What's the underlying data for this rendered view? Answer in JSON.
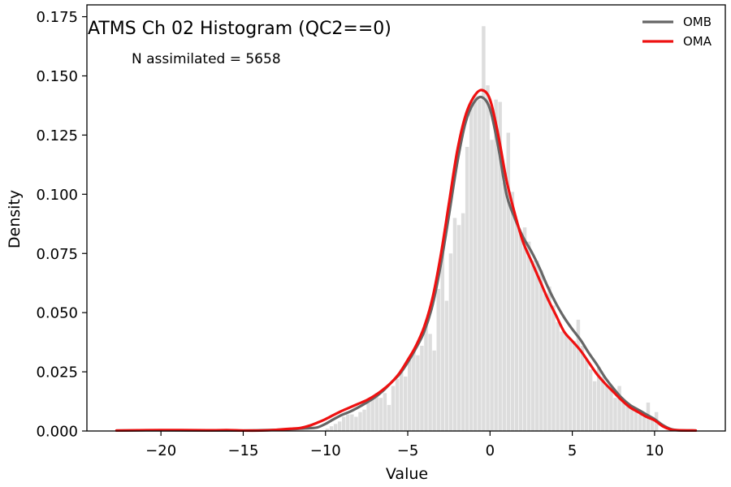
{
  "chart_data": {
    "type": "histogram",
    "title": "ATMS Ch 02 Histogram (QC2==0)",
    "annotation": "N assimilated = 5658",
    "xlabel": "Value",
    "ylabel": "Density",
    "xlim": [
      -24.5,
      14.3
    ],
    "ylim": [
      0,
      0.18
    ],
    "xticks": [
      -20,
      -15,
      -10,
      -5,
      0,
      5,
      10
    ],
    "xtick_labels": [
      "−20",
      "−15",
      "−10",
      "−5",
      "0",
      "5",
      "10"
    ],
    "yticks": [
      0,
      0.025,
      0.05,
      0.075,
      0.1,
      0.125,
      0.15,
      0.175
    ],
    "ytick_labels": [
      "0.000",
      "0.025",
      "0.050",
      "0.075",
      "0.100",
      "0.125",
      "0.150",
      "0.175"
    ],
    "grid": false,
    "legend_position": "top-right",
    "histogram": {
      "color": "#dddddd",
      "bin_width": 0.25,
      "bins": [
        [
          -10.0,
          0.001
        ],
        [
          -9.75,
          0.002
        ],
        [
          -9.5,
          0.003
        ],
        [
          -9.25,
          0.004
        ],
        [
          -9.0,
          0.006
        ],
        [
          -8.75,
          0.007
        ],
        [
          -8.5,
          0.007
        ],
        [
          -8.25,
          0.006
        ],
        [
          -8.0,
          0.008
        ],
        [
          -7.75,
          0.009
        ],
        [
          -7.5,
          0.012
        ],
        [
          -7.25,
          0.014
        ],
        [
          -7.0,
          0.016
        ],
        [
          -6.75,
          0.014
        ],
        [
          -6.5,
          0.016
        ],
        [
          -6.25,
          0.011
        ],
        [
          -6.0,
          0.019
        ],
        [
          -5.75,
          0.022
        ],
        [
          -5.5,
          0.026
        ],
        [
          -5.25,
          0.023
        ],
        [
          -5.0,
          0.03
        ],
        [
          -4.75,
          0.034
        ],
        [
          -4.5,
          0.032
        ],
        [
          -4.25,
          0.036
        ],
        [
          -4.0,
          0.045
        ],
        [
          -3.75,
          0.041
        ],
        [
          -3.5,
          0.034
        ],
        [
          -3.25,
          0.06
        ],
        [
          -3.0,
          0.077
        ],
        [
          -2.75,
          0.055
        ],
        [
          -2.5,
          0.075
        ],
        [
          -2.25,
          0.09
        ],
        [
          -2.0,
          0.087
        ],
        [
          -1.75,
          0.092
        ],
        [
          -1.5,
          0.12
        ],
        [
          -1.25,
          0.139
        ],
        [
          -1.0,
          0.142
        ],
        [
          -0.75,
          0.14
        ],
        [
          -0.5,
          0.171
        ],
        [
          -0.25,
          0.146
        ],
        [
          0.0,
          0.123
        ],
        [
          0.25,
          0.14
        ],
        [
          0.5,
          0.139
        ],
        [
          0.75,
          0.105
        ],
        [
          1.0,
          0.126
        ],
        [
          1.25,
          0.101
        ],
        [
          1.5,
          0.089
        ],
        [
          1.75,
          0.084
        ],
        [
          2.0,
          0.086
        ],
        [
          2.25,
          0.08
        ],
        [
          2.5,
          0.072
        ],
        [
          2.75,
          0.072
        ],
        [
          3.0,
          0.068
        ],
        [
          3.25,
          0.058
        ],
        [
          3.5,
          0.061
        ],
        [
          3.75,
          0.053
        ],
        [
          4.0,
          0.046
        ],
        [
          4.25,
          0.042
        ],
        [
          4.5,
          0.041
        ],
        [
          4.75,
          0.039
        ],
        [
          5.0,
          0.038
        ],
        [
          5.25,
          0.047
        ],
        [
          5.5,
          0.036
        ],
        [
          5.75,
          0.03
        ],
        [
          6.0,
          0.026
        ],
        [
          6.25,
          0.021
        ],
        [
          6.5,
          0.027
        ],
        [
          6.75,
          0.023
        ],
        [
          7.0,
          0.019
        ],
        [
          7.25,
          0.019
        ],
        [
          7.5,
          0.014
        ],
        [
          7.75,
          0.019
        ],
        [
          8.0,
          0.013
        ],
        [
          8.25,
          0.011
        ],
        [
          8.5,
          0.01
        ],
        [
          8.75,
          0.008
        ],
        [
          9.0,
          0.007
        ],
        [
          9.25,
          0.006
        ],
        [
          9.5,
          0.012
        ],
        [
          9.75,
          0.006
        ],
        [
          10.0,
          0.008
        ]
      ]
    },
    "series": [
      {
        "name": "OMB",
        "color": "#666666",
        "x": [
          -22.7,
          -20,
          -17,
          -15,
          -14,
          -13,
          -12,
          -11.5,
          -11,
          -10.5,
          -10,
          -9.5,
          -9,
          -8.5,
          -8,
          -7.5,
          -7,
          -6.5,
          -6,
          -5.5,
          -5,
          -4.5,
          -4,
          -3.5,
          -3,
          -2.5,
          -2,
          -1.5,
          -1,
          -0.5,
          0,
          0.5,
          1,
          1.5,
          2,
          2.5,
          3,
          3.5,
          4,
          4.5,
          5,
          5.5,
          6,
          6.5,
          7,
          7.5,
          8,
          8.5,
          9,
          9.5,
          10,
          10.5,
          11,
          11.5,
          12.5
        ],
        "y": [
          0.0002,
          0.0003,
          0.0002,
          0.0002,
          0.0003,
          0.0005,
          0.0008,
          0.001,
          0.0012,
          0.0015,
          0.003,
          0.005,
          0.0068,
          0.0082,
          0.01,
          0.012,
          0.0142,
          0.017,
          0.0205,
          0.024,
          0.029,
          0.035,
          0.042,
          0.053,
          0.07,
          0.091,
          0.113,
          0.13,
          0.1385,
          0.141,
          0.136,
          0.12,
          0.1,
          0.09,
          0.082,
          0.076,
          0.069,
          0.061,
          0.054,
          0.048,
          0.043,
          0.0385,
          0.033,
          0.028,
          0.0225,
          0.018,
          0.014,
          0.011,
          0.009,
          0.007,
          0.005,
          0.0025,
          0.0008,
          0.0003,
          0.0002
        ]
      },
      {
        "name": "OMA",
        "color": "#ee1111",
        "x": [
          -22.7,
          -20,
          -17,
          -16,
          -15,
          -14,
          -13,
          -12,
          -11.5,
          -11,
          -10.5,
          -10,
          -9.5,
          -9,
          -8.5,
          -8,
          -7.5,
          -7,
          -6.5,
          -6,
          -5.5,
          -5,
          -4.5,
          -4,
          -3.5,
          -3,
          -2.5,
          -2,
          -1.5,
          -1,
          -0.5,
          0,
          0.5,
          1,
          1.5,
          2,
          2.5,
          3,
          3.5,
          4,
          4.5,
          5,
          5.5,
          6,
          6.5,
          7,
          7.5,
          8,
          8.5,
          9,
          9.5,
          10,
          10.5,
          11,
          11.5,
          12.5
        ],
        "y": [
          0.0002,
          0.0004,
          0.0003,
          0.0004,
          0.0002,
          0.0002,
          0.0005,
          0.001,
          0.0013,
          0.0022,
          0.0035,
          0.005,
          0.0068,
          0.0085,
          0.01,
          0.0115,
          0.013,
          0.015,
          0.0175,
          0.0205,
          0.0245,
          0.03,
          0.036,
          0.044,
          0.056,
          0.074,
          0.096,
          0.118,
          0.133,
          0.141,
          0.144,
          0.14,
          0.125,
          0.106,
          0.092,
          0.08,
          0.072,
          0.064,
          0.056,
          0.049,
          0.042,
          0.038,
          0.034,
          0.029,
          0.024,
          0.02,
          0.0165,
          0.013,
          0.01,
          0.008,
          0.006,
          0.0045,
          0.002,
          0.0006,
          0.0003,
          0.0002
        ]
      }
    ]
  }
}
